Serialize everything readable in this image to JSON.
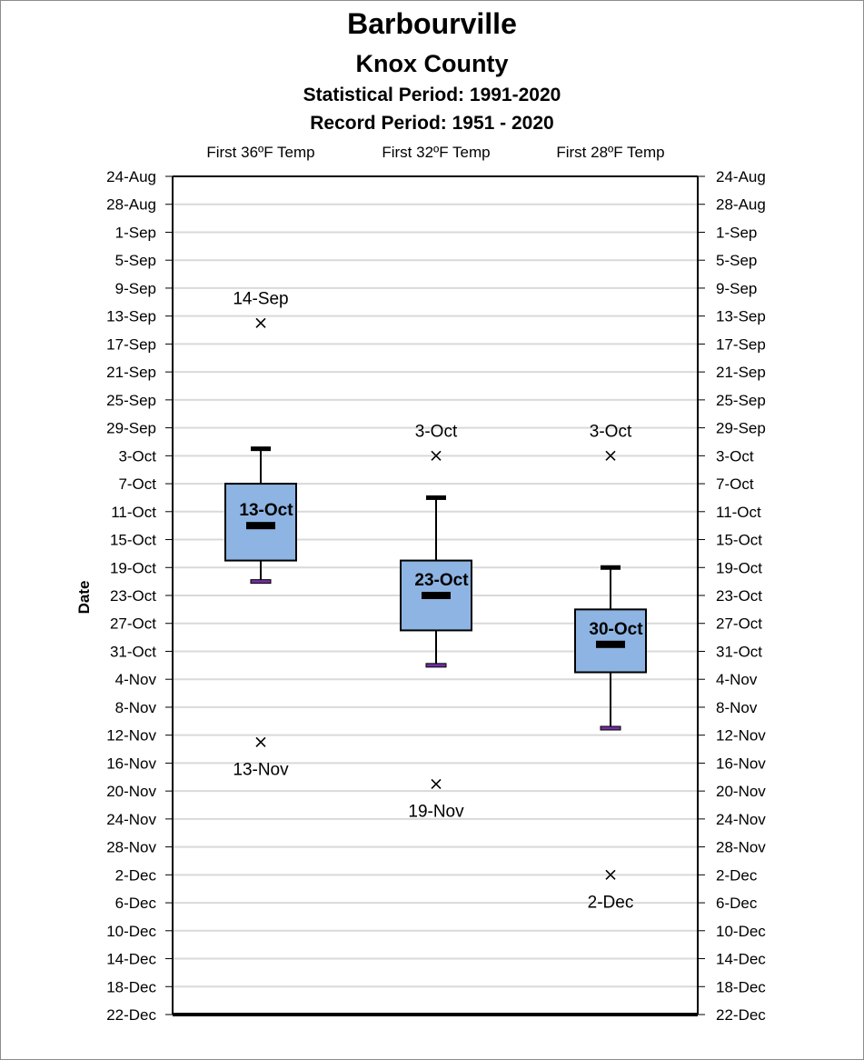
{
  "chart_data": {
    "type": "box",
    "title": "Barbourville",
    "subtitle": "Knox County",
    "subtitle2": "Statistical Period: 1991-2020",
    "subtitle3": "Record Period: 1951 - 2020",
    "ylabel": "Date",
    "ylim": [
      "24-Aug",
      "22-Dec"
    ],
    "y_tick_labels": [
      "24-Aug",
      "28-Aug",
      "1-Sep",
      "5-Sep",
      "9-Sep",
      "13-Sep",
      "17-Sep",
      "21-Sep",
      "25-Sep",
      "29-Sep",
      "3-Oct",
      "7-Oct",
      "11-Oct",
      "15-Oct",
      "19-Oct",
      "23-Oct",
      "27-Oct",
      "31-Oct",
      "4-Nov",
      "8-Nov",
      "12-Nov",
      "16-Nov",
      "20-Nov",
      "24-Nov",
      "28-Nov",
      "2-Dec",
      "6-Dec",
      "10-Dec",
      "14-Dec",
      "18-Dec",
      "22-Dec"
    ],
    "grid": true,
    "categories": [
      "First 36ºF Temp",
      "First 32ºF Temp",
      "First 28ºF Temp"
    ],
    "series": [
      {
        "category": "First 36ºF Temp",
        "whisker_low": "2-Oct",
        "q1": "7-Oct",
        "median": "13-Oct",
        "median_label": "13-Oct",
        "q3": "18-Oct",
        "whisker_high": "21-Oct",
        "record_early": "14-Sep",
        "record_early_label": "14-Sep",
        "record_late": "13-Nov",
        "record_late_label": "13-Nov"
      },
      {
        "category": "First 32ºF Temp",
        "whisker_low": "9-Oct",
        "q1": "18-Oct",
        "median": "23-Oct",
        "median_label": "23-Oct",
        "q3": "28-Oct",
        "whisker_high": "2-Nov",
        "record_early": "3-Oct",
        "record_early_label": "3-Oct",
        "record_late": "19-Nov",
        "record_late_label": "19-Nov"
      },
      {
        "category": "First 28ºF Temp",
        "whisker_low": "19-Oct",
        "q1": "25-Oct",
        "median": "30-Oct",
        "median_label": "30-Oct",
        "q3": "3-Nov",
        "whisker_high": "11-Nov",
        "record_early": "3-Oct",
        "record_early_label": "3-Oct",
        "record_late": "2-Dec",
        "record_late_label": "2-Dec"
      }
    ],
    "colors": {
      "box_fill": "#8db4e2",
      "box_stroke": "#000000",
      "grid": "#d9d9d9",
      "low_cap_accent": "#7030a0"
    }
  }
}
